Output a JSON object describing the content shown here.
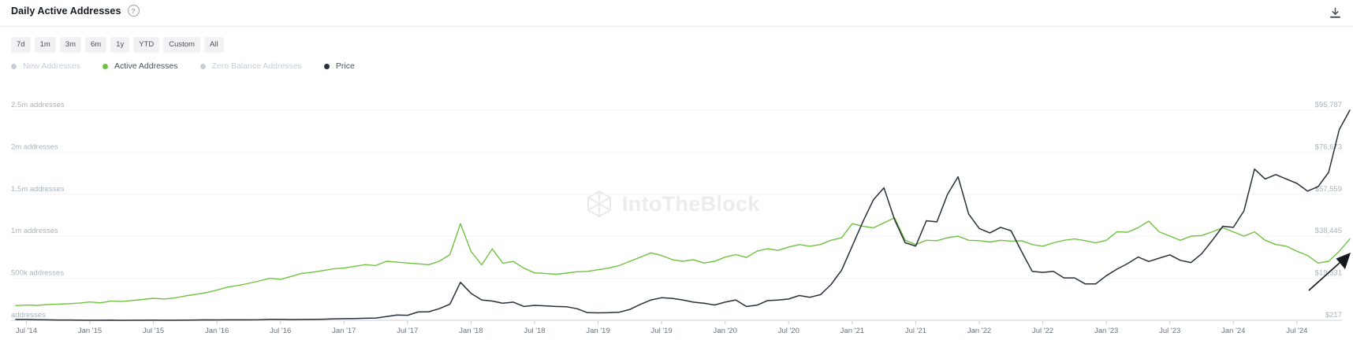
{
  "header": {
    "title": "Daily Active Addresses",
    "help_glyph": "?"
  },
  "time_ranges": [
    "7d",
    "1m",
    "3m",
    "6m",
    "1y",
    "YTD",
    "Custom",
    "All"
  ],
  "legend": [
    {
      "label": "New Addresses",
      "color": "#c8ced5",
      "active": false
    },
    {
      "label": "Active Addresses",
      "color": "#6fc240",
      "active": true
    },
    {
      "label": "Zero Balance Addresses",
      "color": "#c8ced5",
      "active": false
    },
    {
      "label": "Price",
      "color": "#262f3b",
      "active": true
    }
  ],
  "watermark": "IntoTheBlock",
  "colors": {
    "active_addresses_line": "#6fc240",
    "price_line": "#262f3b",
    "gridline": "#f3f4f6",
    "axis_line": "#dde1e5",
    "y_label": "#a9b3bd",
    "x_label": "#6b7480"
  },
  "chart_data": {
    "type": "line",
    "title": "Daily Active Addresses",
    "x_start": "2014-06",
    "x_step": "1 month",
    "x_tick_labels": [
      "Jul '14",
      "Jan '15",
      "Jul '15",
      "Jan '16",
      "Jul '16",
      "Jan '17",
      "Jul '17",
      "Jan '18",
      "Jul '18",
      "Jan '19",
      "Jul '19",
      "Jan '20",
      "Jul '20",
      "Jan '21",
      "Jul '21",
      "Jan '22",
      "Jul '22",
      "Jan '23",
      "Jul '23",
      "Jan '24",
      "Jul '24"
    ],
    "x_tick_first_index": 1,
    "x_tick_every_months": 6,
    "grid": "horizontal",
    "legend_position": "top",
    "y_left": {
      "ticks_bottom_to_top": [
        "addresses",
        "500k addresses",
        "1m addresses",
        "1.5m addresses",
        "2m addresses",
        "2.5m addresses"
      ],
      "min": 0,
      "max": 2500000
    },
    "y_right": {
      "ticks_bottom_to_top": [
        "$217",
        "$19,331",
        "$38,445",
        "$57,559",
        "$76,673",
        "$95,787"
      ],
      "min": 217,
      "max": 95787
    },
    "series": [
      {
        "name": "Active Addresses",
        "axis": "left",
        "color": "#6fc240",
        "values": [
          175000,
          182000,
          178000,
          188000,
          193000,
          198000,
          205000,
          218000,
          208000,
          228000,
          224000,
          236000,
          248000,
          262000,
          254000,
          266000,
          290000,
          310000,
          330000,
          360000,
          395000,
          415000,
          440000,
          468000,
          500000,
          488000,
          522000,
          558000,
          572000,
          592000,
          612000,
          622000,
          642000,
          662000,
          652000,
          702000,
          692000,
          682000,
          672000,
          662000,
          702000,
          782000,
          1150000,
          820000,
          660000,
          850000,
          680000,
          700000,
          620000,
          565000,
          558000,
          548000,
          562000,
          578000,
          582000,
          602000,
          622000,
          652000,
          702000,
          752000,
          802000,
          772000,
          722000,
          702000,
          722000,
          682000,
          702000,
          752000,
          782000,
          748000,
          822000,
          852000,
          832000,
          872000,
          902000,
          882000,
          902000,
          952000,
          982000,
          1150000,
          1120000,
          1100000,
          1160000,
          1220000,
          952000,
          902000,
          952000,
          948000,
          982000,
          1002000,
          952000,
          948000,
          932000,
          952000,
          942000,
          948000,
          902000,
          882000,
          922000,
          952000,
          968000,
          948000,
          922000,
          952000,
          1052000,
          1048000,
          1102000,
          1180000,
          1052000,
          1002000,
          952000,
          1002000,
          1008000,
          1052000,
          1102000,
          1052000,
          1002000,
          1052000,
          952000,
          902000,
          882000,
          822000,
          772000,
          682000,
          702000,
          822000,
          968000
        ]
      },
      {
        "name": "Price",
        "axis": "right",
        "color": "#262f3b",
        "values": [
          600,
          625,
          515,
          445,
          365,
          375,
          330,
          248,
          242,
          272,
          232,
          237,
          245,
          282,
          252,
          236,
          272,
          352,
          425,
          402,
          422,
          416,
          442,
          482,
          652,
          662,
          582,
          606,
          642,
          722,
          902,
          952,
          1052,
          1152,
          1252,
          1902,
          2602,
          2502,
          4002,
          4102,
          5502,
          7502,
          17500,
          12500,
          9500,
          9000,
          8000,
          8500,
          6500,
          7000,
          6800,
          6500,
          6400,
          5500,
          3700,
          3600,
          3700,
          3900,
          5200,
          7500,
          9500,
          10500,
          10200,
          9500,
          8500,
          8000,
          7200,
          8500,
          9500,
          6500,
          7100,
          9200,
          9400,
          9900,
          11500,
          10700,
          11900,
          16500,
          23000,
          34000,
          45000,
          55000,
          60500,
          46000,
          35500,
          34000,
          45500,
          45000,
          57500,
          65500,
          48500,
          42000,
          40000,
          42500,
          41000,
          31500,
          22500,
          22000,
          22500,
          19500,
          19500,
          16800,
          16800,
          20500,
          23500,
          26000,
          29000,
          27000,
          28500,
          30000,
          27500,
          26500,
          30500,
          36500,
          43000,
          42500,
          50000,
          69000,
          64500,
          66500,
          64500,
          62500,
          59000,
          61000,
          67500,
          87000,
          95787
        ]
      }
    ],
    "annotations": [
      {
        "type": "arrow",
        "direction": "up-right",
        "points_at": "Active Addresses uptick at right edge"
      }
    ]
  }
}
